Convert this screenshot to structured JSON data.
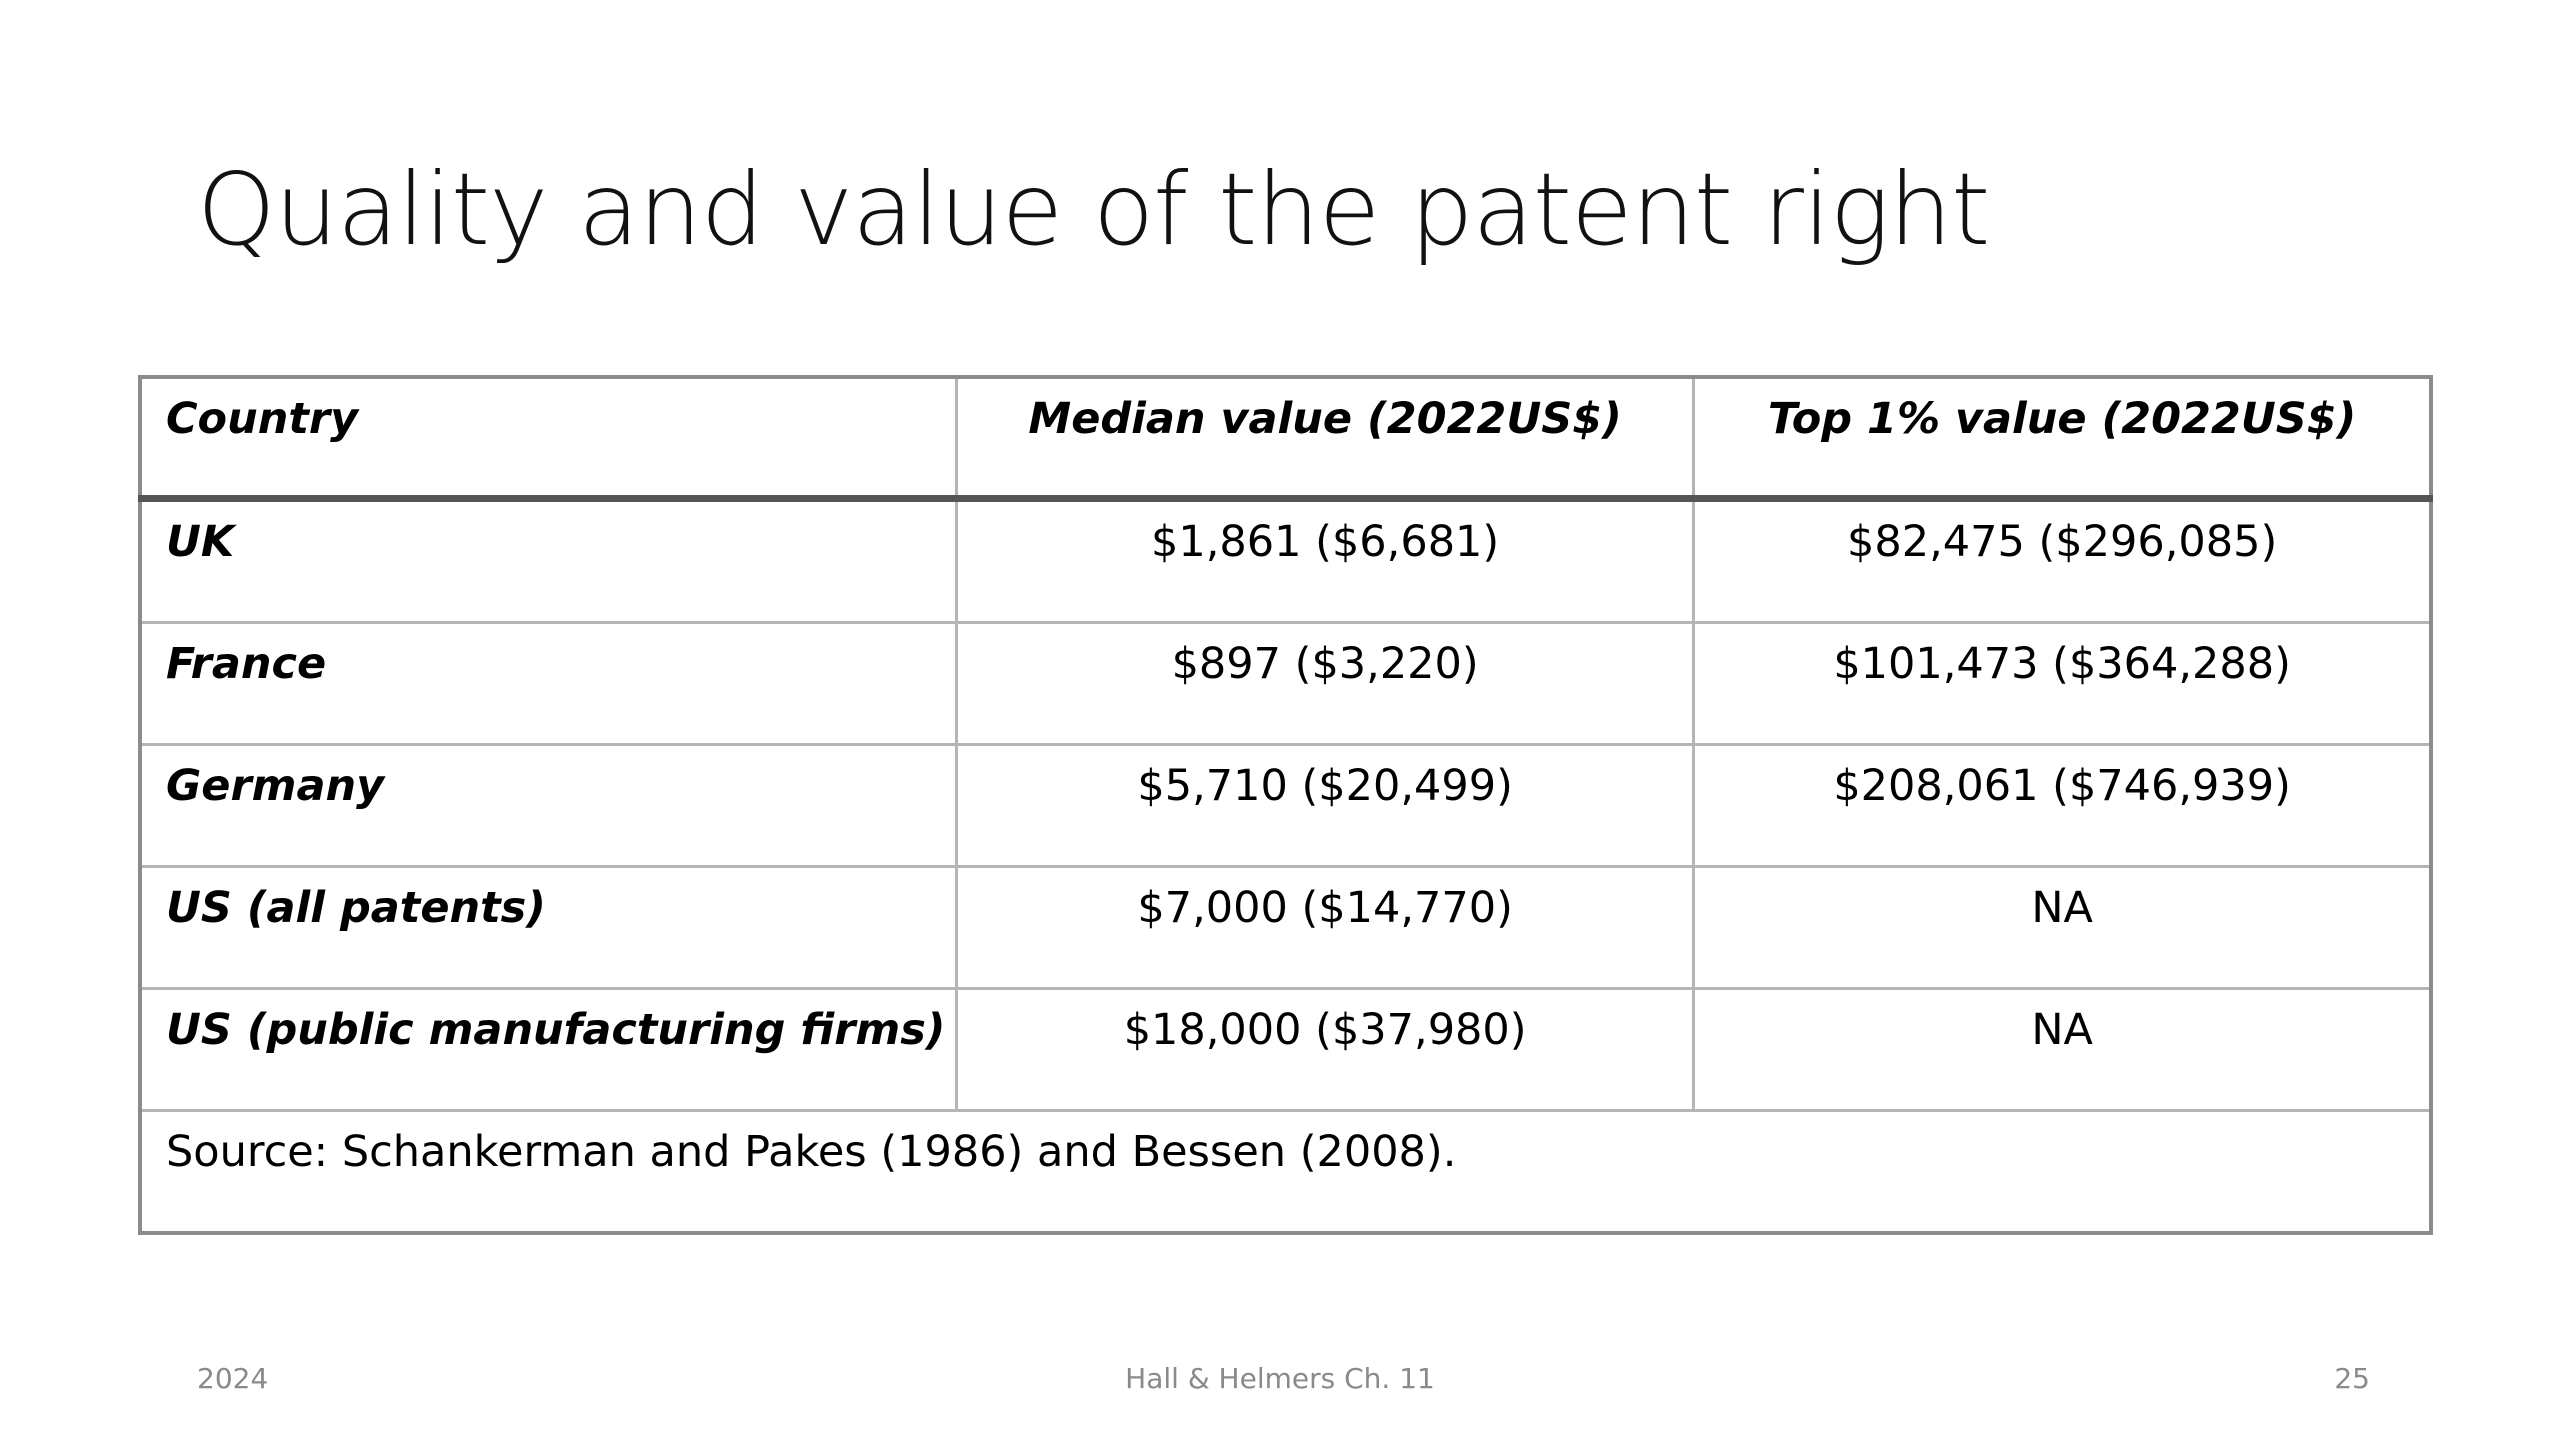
{
  "slide": {
    "title": "Quality and value of the patent right"
  },
  "table": {
    "headers": [
      "Country",
      "Median value (2022US$)",
      "Top 1% value (2022US$)"
    ],
    "rows": [
      {
        "country": "UK",
        "median": "$1,861 ($6,681)",
        "top1": "$82,475 ($296,085)"
      },
      {
        "country": "France",
        "median": "$897 ($3,220)",
        "top1": "$101,473 ($364,288)"
      },
      {
        "country": "Germany",
        "median": "$5,710 ($20,499)",
        "top1": "$208,061 ($746,939)"
      },
      {
        "country": "US (all patents)",
        "median": "$7,000 ($14,770)",
        "top1": "NA"
      },
      {
        "country": "US (public manufacturing firms)",
        "median": "$18,000 ($37,980)",
        "top1": "NA"
      }
    ],
    "source": "Source: Schankerman and Pakes (1986) and Bessen (2008)."
  },
  "footer": {
    "date": "2024",
    "center": "Hall & Helmers Ch. 11",
    "page_number": "25"
  }
}
